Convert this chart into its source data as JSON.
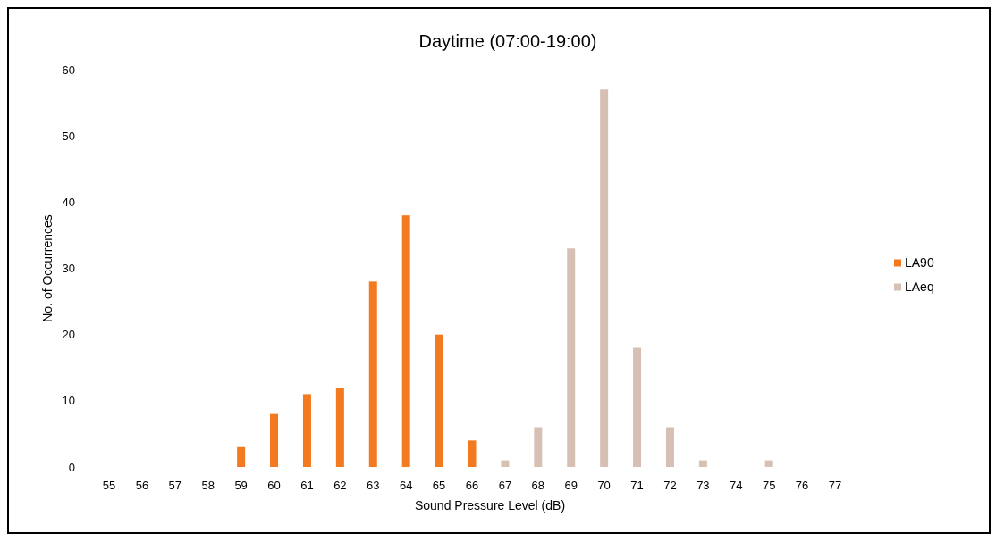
{
  "chart_data": {
    "type": "bar",
    "title": "Daytime (07:00-19:00)",
    "xlabel": "Sound Pressure Level (dB)",
    "ylabel": "No. of Occurrences",
    "categories": [
      "55",
      "56",
      "57",
      "58",
      "59",
      "60",
      "61",
      "62",
      "63",
      "64",
      "65",
      "66",
      "67",
      "68",
      "69",
      "70",
      "71",
      "72",
      "73",
      "74",
      "75",
      "76",
      "77"
    ],
    "series": [
      {
        "name": "LA90",
        "color": "#f47a20",
        "values": [
          null,
          null,
          null,
          null,
          3,
          8,
          11,
          12,
          28,
          38,
          20,
          4,
          null,
          null,
          null,
          null,
          null,
          null,
          null,
          null,
          null,
          null,
          null
        ]
      },
      {
        "name": "LAeq",
        "color": "#d6c0b4",
        "values": [
          null,
          null,
          null,
          null,
          null,
          null,
          null,
          null,
          null,
          null,
          null,
          null,
          1,
          6,
          33,
          57,
          18,
          6,
          1,
          null,
          1,
          null,
          null
        ]
      }
    ],
    "ylim": [
      0,
      60
    ],
    "yticks": [
      0,
      10,
      20,
      30,
      40,
      50,
      60
    ],
    "grid": false,
    "legend": "right"
  }
}
